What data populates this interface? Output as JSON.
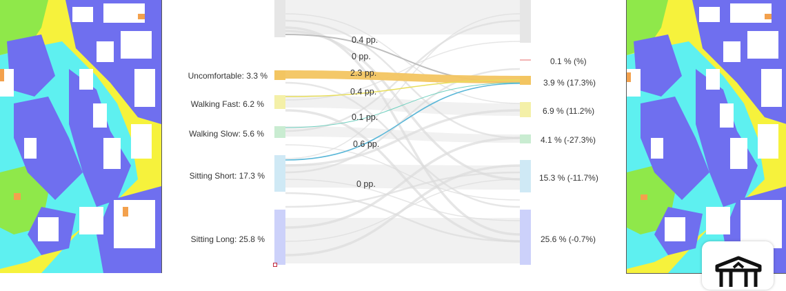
{
  "colors": {
    "uncomfortable": "#f3c561",
    "walking_fast": "#f4f0a8",
    "walking_slow": "#c9ecd1",
    "sitting_short": "#cfe9f5",
    "sitting_long": "#ccd1fa",
    "neutral_node": "#e6e6e6",
    "neutral_flow": "#ececec",
    "map_yellow": "#f6f23c",
    "map_green": "#8fe84a",
    "map_cyan": "#5ef0f0",
    "map_blue": "#6f6fef",
    "map_orange": "#f3a14d"
  },
  "left_nodes": [
    {
      "label": "Uncomfortable:  3.3 %"
    },
    {
      "label": "Walking Fast:  6.2 %"
    },
    {
      "label": "Walking Slow:  5.6 %"
    },
    {
      "label": "Sitting Short:  17.3 %"
    },
    {
      "label": "Sitting Long:  25.8 %"
    }
  ],
  "right_nodes": [
    {
      "label": "0.1 % (%)"
    },
    {
      "label": "3.9 % (17.3%)"
    },
    {
      "label": "6.9 % (11.2%)"
    },
    {
      "label": "4.1 % (-27.3%)"
    },
    {
      "label": "15.3 % (-11.7%)"
    },
    {
      "label": "25.6 % (-0.7%)"
    }
  ],
  "flow_labels": [
    "0.4 pp.",
    "0 pp.",
    "2.3 pp.",
    "0.4 pp.",
    "0.1 pp.",
    "0.6 pp.",
    "0 pp."
  ],
  "logo": {
    "icon": "building-logo-icon"
  }
}
